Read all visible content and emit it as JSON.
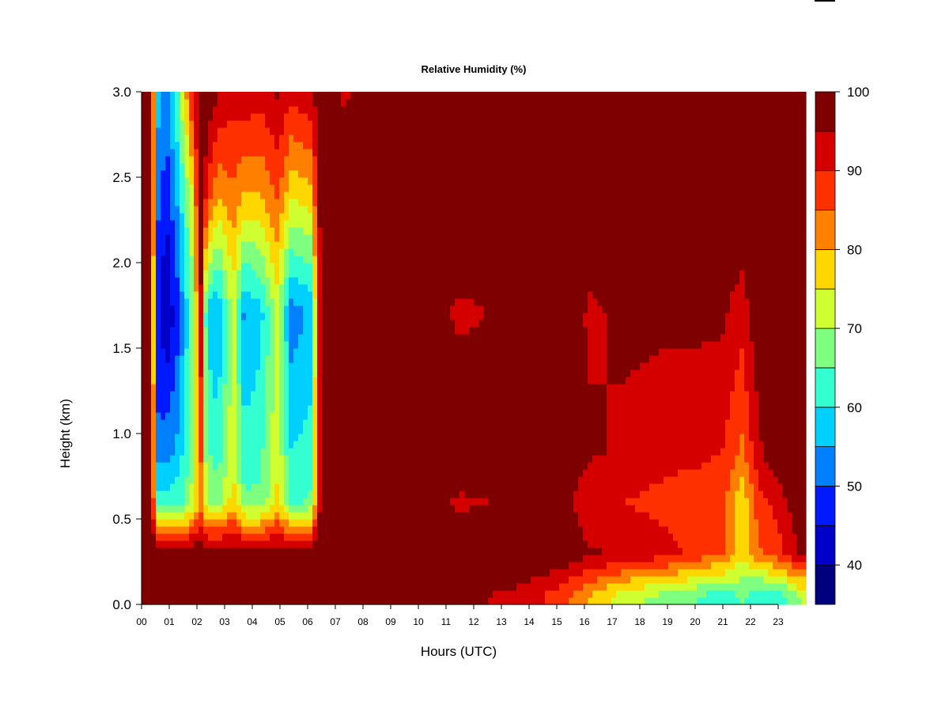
{
  "chart_data": {
    "type": "heatmap",
    "title": "Relative Humidity (%)",
    "xlabel": "Hours (UTC)",
    "ylabel": "Height (km)",
    "xlim": [
      0,
      24
    ],
    "ylim": [
      0,
      3.0
    ],
    "x_ticks": [
      "00",
      "01",
      "02",
      "03",
      "04",
      "05",
      "06",
      "07",
      "08",
      "09",
      "10",
      "11",
      "12",
      "13",
      "14",
      "15",
      "16",
      "17",
      "18",
      "19",
      "20",
      "21",
      "22",
      "23"
    ],
    "y_ticks": [
      "0.0",
      "0.5",
      "1.0",
      "1.5",
      "2.0",
      "2.5",
      "3.0"
    ],
    "colorbar": {
      "ticks": [
        "40",
        "50",
        "60",
        "70",
        "80",
        "90",
        "100"
      ],
      "range": [
        35,
        100
      ],
      "levels": [
        35,
        40,
        45,
        50,
        55,
        60,
        65,
        70,
        75,
        80,
        85,
        90,
        95,
        100
      ],
      "colors": [
        "#00007f",
        "#0000c8",
        "#0019ff",
        "#0080ff",
        "#00d0ff",
        "#33ffd0",
        "#7fff7f",
        "#cfff30",
        "#ffd700",
        "#ff8000",
        "#ff3000",
        "#d40000",
        "#7f0000"
      ]
    },
    "profiles": [
      {
        "hour": 0.0,
        "rh": [
          96,
          99,
          100,
          100,
          100,
          100,
          100
        ]
      },
      {
        "hour": 0.35,
        "rh": [
          96,
          100,
          100,
          100,
          100,
          100,
          100
        ]
      },
      {
        "hour": 0.55,
        "rh": [
          95,
          99,
          63,
          52,
          46,
          52,
          58
        ]
      },
      {
        "hour": 0.9,
        "rh": [
          95,
          99,
          62,
          53,
          40,
          46,
          53
        ]
      },
      {
        "hour": 1.3,
        "rh": [
          95,
          99,
          64,
          56,
          48,
          56,
          65
        ]
      },
      {
        "hour": 1.6,
        "rh": [
          95,
          99,
          66,
          62,
          58,
          66,
          80
        ]
      },
      {
        "hour": 1.85,
        "rh": [
          96,
          100,
          72,
          70,
          68,
          76,
          92
        ]
      },
      {
        "hour": 2.15,
        "rh": [
          97,
          100,
          82,
          86,
          94,
          100,
          100
        ]
      },
      {
        "hour": 2.35,
        "rh": [
          95,
          99,
          70,
          66,
          58,
          90,
          100
        ]
      },
      {
        "hour": 2.75,
        "rh": [
          95,
          99,
          68,
          62,
          54,
          80,
          96
        ]
      },
      {
        "hour": 3.3,
        "rh": [
          96,
          99,
          78,
          74,
          72,
          84,
          92
        ]
      },
      {
        "hour": 3.7,
        "rh": [
          95,
          99,
          66,
          62,
          54,
          80,
          94
        ]
      },
      {
        "hour": 4.3,
        "rh": [
          95,
          99,
          66,
          64,
          58,
          80,
          92
        ]
      },
      {
        "hour": 4.9,
        "rh": [
          96,
          99,
          76,
          74,
          72,
          86,
          96
        ]
      },
      {
        "hour": 5.4,
        "rh": [
          95,
          99,
          64,
          60,
          52,
          76,
          92
        ]
      },
      {
        "hour": 6.1,
        "rh": [
          95,
          99,
          66,
          62,
          56,
          78,
          94
        ]
      },
      {
        "hour": 6.5,
        "rh": [
          96,
          100,
          100,
          100,
          100,
          100,
          100
        ]
      },
      {
        "hour": 7.3,
        "rh": [
          97,
          100,
          100,
          100,
          98,
          100,
          94
        ]
      },
      {
        "hour": 9.0,
        "rh": [
          97,
          100,
          100,
          100,
          100,
          100,
          100
        ]
      },
      {
        "hour": 11.5,
        "rh": [
          96,
          100,
          94,
          100,
          94,
          100,
          100
        ]
      },
      {
        "hour": 13.5,
        "rh": [
          94,
          100,
          96,
          100,
          96,
          100,
          100
        ]
      },
      {
        "hour": 15.0,
        "rh": [
          88,
          100,
          100,
          100,
          100,
          100,
          100
        ]
      },
      {
        "hour": 16.2,
        "rh": [
          80,
          96,
          90,
          96,
          94,
          100,
          100
        ]
      },
      {
        "hour": 17.5,
        "rh": [
          72,
          94,
          90,
          94,
          96,
          100,
          100
        ]
      },
      {
        "hour": 19.0,
        "rh": [
          68,
          92,
          88,
          92,
          96,
          100,
          100
        ]
      },
      {
        "hour": 20.0,
        "rh": [
          65,
          88,
          86,
          92,
          96,
          100,
          100
        ]
      },
      {
        "hour": 21.0,
        "rh": [
          62,
          86,
          86,
          90,
          96,
          100,
          100
        ]
      },
      {
        "hour": 21.7,
        "rh": [
          66,
          76,
          76,
          84,
          92,
          100,
          100
        ]
      },
      {
        "hour": 22.3,
        "rh": [
          60,
          84,
          88,
          94,
          100,
          100,
          100
        ]
      },
      {
        "hour": 23.0,
        "rh": [
          62,
          88,
          92,
          100,
          100,
          100,
          100
        ]
      },
      {
        "hour": 23.8,
        "rh": [
          70,
          96,
          100,
          100,
          100,
          100,
          100
        ]
      }
    ],
    "profile_heights_km": [
      0.05,
      0.3,
      0.6,
      0.9,
      1.7,
      2.4,
      3.0
    ]
  }
}
